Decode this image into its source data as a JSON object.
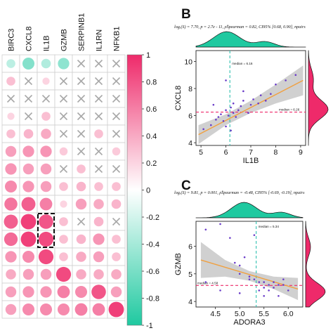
{
  "colors": {
    "teal": "#1fc9a0",
    "pink": "#ee2a6a",
    "orange": "#f0a040",
    "points": "#6a3cc8",
    "median_v": "#2fc0b0",
    "median_h": "#ee2a6a",
    "band": "#c8c8c8"
  },
  "chart_data": [
    {
      "type": "heatmap",
      "panel": "A",
      "columns": [
        "BIRC3",
        "CXCL8",
        "IL1B",
        "GZMB",
        "SERPINB1",
        "IL1RN",
        "NFKB1"
      ],
      "cells": [
        [
          -0.3,
          -0.55,
          -0.35,
          -0.5,
          "x",
          "x",
          "x"
        ],
        [
          0.3,
          "x",
          0.2,
          "x",
          "x",
          "x",
          "x"
        ],
        [
          "x",
          "x",
          "x",
          "x",
          "x",
          "x",
          "x"
        ],
        [
          0.2,
          "x",
          0.3,
          "x",
          "x",
          "x",
          "x"
        ],
        [
          0.3,
          0.35,
          0.4,
          "x",
          "x",
          0.3,
          "x"
        ],
        [
          0.45,
          0.5,
          0.5,
          0.25,
          "x",
          "x",
          0.25
        ],
        [
          0.5,
          0.45,
          0.45,
          "x",
          0.3,
          "x",
          "x"
        ],
        [
          0.55,
          0.5,
          0.45,
          0.3,
          0.35,
          0.3,
          0.3
        ],
        [
          0.65,
          0.75,
          0.6,
          0.2,
          0.45,
          0.4,
          0.35
        ],
        [
          0.75,
          0.9,
          0.8,
          0.3,
          "x",
          0.35,
          "x"
        ],
        [
          0.7,
          0.9,
          0.85,
          0.3,
          0.35,
          0.5,
          0.3
        ],
        [
          0.5,
          0.55,
          0.85,
          0.3,
          0.4,
          0.45,
          0.3
        ],
        [
          0.4,
          0.45,
          0.45,
          0.85,
          0.4,
          0.4,
          0.4
        ],
        [
          0.45,
          0.5,
          0.5,
          0.6,
          0.55,
          0.8,
          0.45
        ],
        [
          0.45,
          0.55,
          0.55,
          0.55,
          0.6,
          0.6,
          0.9
        ]
      ],
      "highlight": {
        "rows": [
          9,
          10
        ],
        "col": 2
      },
      "colorbar": {
        "ticks": [
          "1",
          "0.8",
          "0.6",
          "0.4",
          "0.2",
          "0",
          "-0.2",
          "-0.4",
          "-0.6",
          "-0.8",
          "-1"
        ]
      }
    },
    {
      "type": "scatter",
      "panel_label": "B",
      "stats": "logₑ(S) = 7.70, p = 2.7e - 11, ρ̂Spearman = 0.82, CI95% [0.68, 0.90], npairs",
      "xlabel": "IL1B",
      "ylabel": "CXCL8",
      "xlim": [
        4.8,
        9.2
      ],
      "ylim": [
        3.8,
        10.8
      ],
      "xticks": [
        5,
        6,
        7,
        8,
        9
      ],
      "yticks": [
        4,
        6,
        8,
        10
      ],
      "median_x": 6.16,
      "median_x_label": "median = 6.16",
      "median_y": 6.26,
      "median_y_label": "median = 6.26",
      "fit": {
        "x": [
          4.9,
          9.1
        ],
        "y": [
          4.6,
          8.6
        ]
      },
      "band": {
        "x": [
          4.9,
          6.0,
          7.0,
          8.0,
          9.1
        ],
        "lower": [
          3.9,
          5.3,
          6.2,
          6.9,
          7.5
        ],
        "upper": [
          5.3,
          6.1,
          7.1,
          8.3,
          9.7
        ]
      },
      "points": [
        [
          5.1,
          5.0
        ],
        [
          5.4,
          5.3
        ],
        [
          5.6,
          5.7
        ],
        [
          5.7,
          5.9
        ],
        [
          5.8,
          6.1
        ],
        [
          5.9,
          5.6
        ],
        [
          6.0,
          6.4
        ],
        [
          6.0,
          5.2
        ],
        [
          6.1,
          6.0
        ],
        [
          6.2,
          6.6
        ],
        [
          6.3,
          6.2
        ],
        [
          6.3,
          6.9
        ],
        [
          6.4,
          5.9
        ],
        [
          6.5,
          6.4
        ],
        [
          6.6,
          6.7
        ],
        [
          6.7,
          7.1
        ],
        [
          6.9,
          6.2
        ],
        [
          7.0,
          6.8
        ],
        [
          7.1,
          7.2
        ],
        [
          7.3,
          6.9
        ],
        [
          7.4,
          7.5
        ],
        [
          7.6,
          7.1
        ],
        [
          7.8,
          7.6
        ],
        [
          8.0,
          8.3
        ],
        [
          8.4,
          8.6
        ],
        [
          8.8,
          9.0
        ],
        [
          6.2,
          4.9
        ],
        [
          5.5,
          6.8
        ],
        [
          6.0,
          8.6
        ],
        [
          6.7,
          7.8
        ]
      ]
    },
    {
      "type": "scatter",
      "panel_label": "C",
      "stats": "logₑ(S) = 9.81, p = 0.001, ρ̂Spearman = -0.48, CI95% [-0.69, -0.19], npairs",
      "xlabel": "ADORA3",
      "ylabel": "GZMB",
      "xlim": [
        4.1,
        6.3
      ],
      "ylim": [
        3.8,
        6.9
      ],
      "xticks": [
        "4.5",
        "5.0",
        "5.5",
        "6.0"
      ],
      "yticks": [
        4,
        5,
        6
      ],
      "median_x": 5.34,
      "median_x_label": "median = 5.34",
      "median_y": 4.58,
      "median_y_label": "median = 4.58",
      "fit": {
        "x": [
          4.2,
          6.2
        ],
        "y": [
          5.5,
          4.45
        ]
      },
      "band": {
        "x": [
          4.2,
          4.7,
          5.2,
          5.7,
          6.2
        ],
        "lower": [
          4.85,
          4.9,
          4.75,
          4.45,
          4.05
        ],
        "upper": [
          6.15,
          5.5,
          5.1,
          4.9,
          4.85
        ]
      },
      "points": [
        [
          4.3,
          6.6
        ],
        [
          4.6,
          6.8
        ],
        [
          4.9,
          5.4
        ],
        [
          4.8,
          6.3
        ],
        [
          5.0,
          5.0
        ],
        [
          5.0,
          5.3
        ],
        [
          5.1,
          5.6
        ],
        [
          5.2,
          4.8
        ],
        [
          5.3,
          4.8
        ],
        [
          5.3,
          6.4
        ],
        [
          5.4,
          4.7
        ],
        [
          5.4,
          4.4
        ],
        [
          5.5,
          4.5
        ],
        [
          5.5,
          4.7
        ],
        [
          5.6,
          4.6
        ],
        [
          5.6,
          4.4
        ],
        [
          5.7,
          4.5
        ],
        [
          5.7,
          4.7
        ],
        [
          5.8,
          4.2
        ],
        [
          5.8,
          4.6
        ],
        [
          5.9,
          4.6
        ],
        [
          6.0,
          4.4
        ],
        [
          5.2,
          4.9
        ],
        [
          4.6,
          4.4
        ],
        [
          4.3,
          4.7
        ],
        [
          5.0,
          4.3
        ],
        [
          5.9,
          4.8
        ],
        [
          5.5,
          4.2
        ]
      ]
    }
  ]
}
